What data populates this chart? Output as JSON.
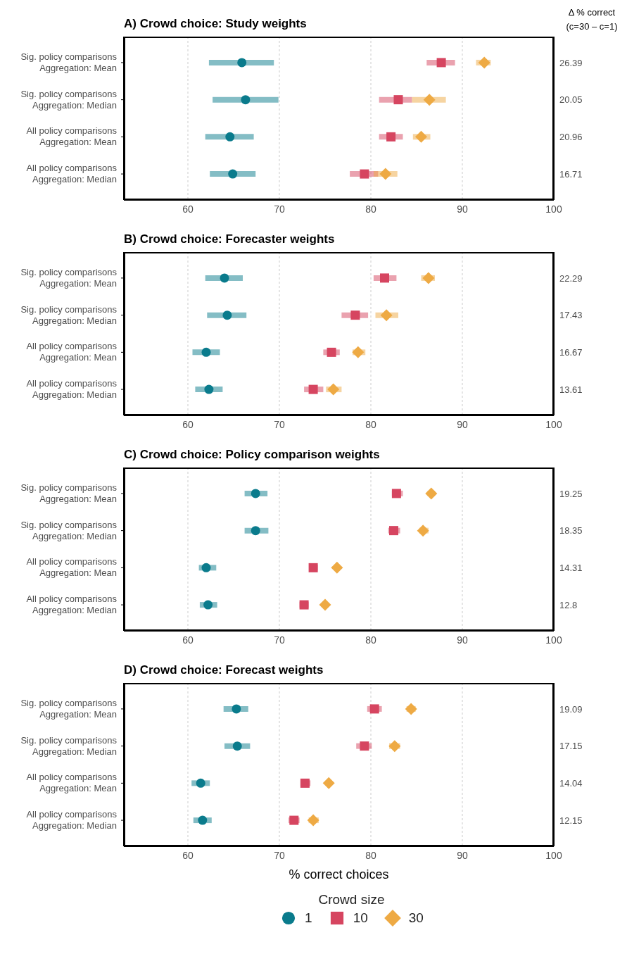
{
  "chart_data": [
    {
      "type": "scatter",
      "orientation": "horizontal",
      "title": "A) Crowd choice: Study weights",
      "y2label": "Δ % correct\n(c=30 – c=1)",
      "categories": [
        "Sig. policy comparisons\nAggregation: Mean",
        "Sig. policy comparisons\nAggregation: Median",
        "All policy comparisons\nAggregation: Mean",
        "All policy comparisons\nAggregation: Median"
      ],
      "y2_categories": [
        "26.39",
        "20.05",
        "20.96",
        "16.71"
      ],
      "xlim": [
        53,
        100
      ],
      "xticks": [
        60,
        70,
        80,
        90,
        100
      ],
      "grid": "x",
      "series": [
        {
          "color": "#0a7b8c",
          "marker": "circle",
          "values": [
            65.9,
            66.3,
            64.6,
            64.9
          ],
          "errors": [
            [
              62.3,
              69.4
            ],
            [
              62.7,
              69.9
            ],
            [
              61.9,
              67.2
            ],
            [
              62.4,
              67.4
            ]
          ]
        },
        {
          "color": "#d64560",
          "marker": "square",
          "values": [
            87.7,
            83.0,
            82.2,
            79.3
          ],
          "errors": [
            [
              86.1,
              89.2
            ],
            [
              80.9,
              84.5
            ],
            [
              80.9,
              83.5
            ],
            [
              77.7,
              80.8
            ]
          ]
        },
        {
          "color": "#eeaa44",
          "marker": "diamond",
          "values": [
            92.4,
            86.4,
            85.5,
            81.6
          ],
          "errors": [
            [
              91.5,
              93.1
            ],
            [
              84.5,
              88.2
            ],
            [
              84.6,
              86.5
            ],
            [
              80.3,
              82.9
            ]
          ]
        }
      ]
    },
    {
      "type": "scatter",
      "orientation": "horizontal",
      "title": "B) Crowd choice: Forecaster weights",
      "categories": [
        "Sig. policy comparisons\nAggregation: Mean",
        "Sig. policy comparisons\nAggregation: Median",
        "All policy comparisons\nAggregation: Mean",
        "All policy comparisons\nAggregation: Median"
      ],
      "y2_categories": [
        "22.29",
        "17.43",
        "16.67",
        "13.61"
      ],
      "xlim": [
        53,
        100
      ],
      "xticks": [
        60,
        70,
        80,
        90,
        100
      ],
      "grid": "x",
      "series": [
        {
          "color": "#0a7b8c",
          "marker": "circle",
          "values": [
            64.0,
            64.3,
            62.0,
            62.3
          ],
          "errors": [
            [
              61.9,
              66.0
            ],
            [
              62.1,
              66.4
            ],
            [
              60.5,
              63.5
            ],
            [
              60.8,
              63.8
            ]
          ]
        },
        {
          "color": "#d64560",
          "marker": "square",
          "values": [
            81.5,
            78.3,
            75.7,
            73.7
          ],
          "errors": [
            [
              80.3,
              82.8
            ],
            [
              76.8,
              79.7
            ],
            [
              74.8,
              76.6
            ],
            [
              72.7,
              74.8
            ]
          ]
        },
        {
          "color": "#eeaa44",
          "marker": "diamond",
          "values": [
            86.3,
            81.7,
            78.6,
            75.9
          ],
          "errors": [
            [
              85.5,
              87.0
            ],
            [
              80.5,
              83.0
            ],
            [
              78.0,
              79.4
            ],
            [
              75.1,
              76.8
            ]
          ]
        }
      ]
    },
    {
      "type": "scatter",
      "orientation": "horizontal",
      "title": "C) Crowd choice: Policy comparison weights",
      "categories": [
        "Sig. policy comparisons\nAggregation: Mean",
        "Sig. policy comparisons\nAggregation: Median",
        "All policy comparisons\nAggregation: Mean",
        "All policy comparisons\nAggregation: Median"
      ],
      "y2_categories": [
        "19.25",
        "18.35",
        "14.31",
        "12.8"
      ],
      "xlim": [
        53,
        100
      ],
      "xticks": [
        60,
        70,
        80,
        90,
        100
      ],
      "grid": "x",
      "series": [
        {
          "color": "#0a7b8c",
          "marker": "circle",
          "values": [
            67.4,
            67.4,
            62.0,
            62.2
          ],
          "errors": [
            [
              66.2,
              68.7
            ],
            [
              66.2,
              68.8
            ],
            [
              61.2,
              63.1
            ],
            [
              61.3,
              63.2
            ]
          ]
        },
        {
          "color": "#d64560",
          "marker": "square",
          "values": [
            82.8,
            82.5,
            73.7,
            72.7
          ],
          "errors": [
            [
              82.3,
              83.5
            ],
            [
              81.9,
              83.2
            ],
            [
              73.3,
              74.2
            ],
            [
              72.2,
              73.2
            ]
          ]
        },
        {
          "color": "#eeaa44",
          "marker": "diamond",
          "values": [
            86.6,
            85.7,
            76.3,
            75.0
          ],
          "errors": [
            [
              86.2,
              87.0
            ],
            [
              85.3,
              86.3
            ],
            [
              76.0,
              76.6
            ],
            [
              74.7,
              75.3
            ]
          ]
        }
      ]
    },
    {
      "type": "scatter",
      "orientation": "horizontal",
      "title": "D) Crowd choice: Forecast weights",
      "xlabel": "% correct choices",
      "legend_title": "Crowd size",
      "legend": "bottom",
      "categories": [
        "Sig. policy comparisons\nAggregation: Mean",
        "Sig. policy comparisons\nAggregation: Median",
        "All policy comparisons\nAggregation: Mean",
        "All policy comparisons\nAggregation: Median"
      ],
      "y2_categories": [
        "19.09",
        "17.15",
        "14.04",
        "12.15"
      ],
      "xlim": [
        53,
        100
      ],
      "xticks": [
        60,
        70,
        80,
        90,
        100
      ],
      "grid": "x",
      "series": [
        {
          "name": "1",
          "color": "#0a7b8c",
          "marker": "circle",
          "values": [
            65.3,
            65.4,
            61.4,
            61.6
          ],
          "errors": [
            [
              63.9,
              66.6
            ],
            [
              64.0,
              66.8
            ],
            [
              60.4,
              62.4
            ],
            [
              60.6,
              62.6
            ]
          ]
        },
        {
          "name": "10",
          "color": "#d64560",
          "marker": "square",
          "values": [
            80.4,
            79.3,
            72.8,
            71.6
          ],
          "errors": [
            [
              79.6,
              81.2
            ],
            [
              78.4,
              80.1
            ],
            [
              72.3,
              73.4
            ],
            [
              71.0,
              72.2
            ]
          ]
        },
        {
          "name": "30",
          "color": "#eeaa44",
          "marker": "diamond",
          "values": [
            84.4,
            82.6,
            75.4,
            73.7
          ],
          "errors": [
            [
              83.9,
              84.9
            ],
            [
              82.0,
              83.2
            ],
            [
              75.1,
              75.7
            ],
            [
              73.2,
              74.3
            ]
          ]
        }
      ]
    }
  ]
}
